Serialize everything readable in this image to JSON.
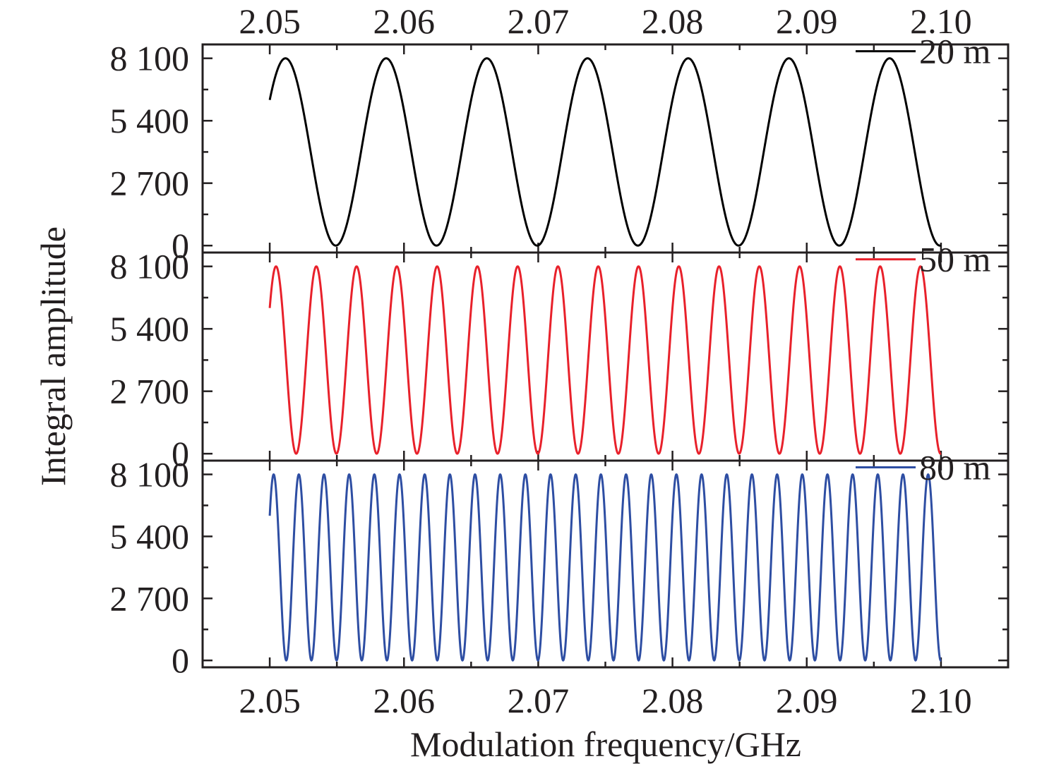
{
  "chart_data": {
    "type": "line",
    "layout": "three vertically stacked panels sharing the x axis",
    "xlabel": "Modulation frequency/GHz",
    "ylabel": "Integral amplitude",
    "xlim": [
      2.045,
      2.105
    ],
    "x_ticks": [
      2.05,
      2.06,
      2.07,
      2.08,
      2.09,
      2.1
    ],
    "x_tick_labels": [
      "2.05",
      "2.06",
      "2.07",
      "2.08",
      "2.09",
      "2.10"
    ],
    "top_axis_tick_labels": [
      "2.05",
      "2.06",
      "2.07",
      "2.08",
      "2.09",
      "2.10"
    ],
    "ylim": [
      -300,
      8700
    ],
    "y_ticks": [
      0,
      2700,
      5400,
      8100
    ],
    "y_tick_labels": [
      "0",
      "2 700",
      "5 400",
      "8 100"
    ],
    "legend_position": "top-right of each panel",
    "x_range_of_data": [
      2.05,
      2.1
    ],
    "series": [
      {
        "name": "20 m",
        "panel": 1,
        "color": "#000000",
        "amplitude_max": 8100,
        "amplitude_min": 0,
        "start_value": 6300,
        "period_GHz": 0.0075,
        "peak_positions": [
          2.0513,
          2.0588,
          2.0663,
          2.0738,
          2.0813,
          2.0888,
          2.0963
        ],
        "valley_positions": [
          2.055,
          2.0625,
          2.07,
          2.0775,
          2.085,
          2.0925,
          2.1
        ]
      },
      {
        "name": "50 m",
        "panel": 2,
        "color": "#e8212b",
        "amplitude_max": 8100,
        "amplitude_min": 0,
        "start_value": 6300,
        "period_GHz": 0.003,
        "peak_positions": [
          2.0505,
          2.0535,
          2.0565,
          2.0595,
          2.0625,
          2.0655,
          2.0685,
          2.0715,
          2.0745,
          2.0775,
          2.0805,
          2.0835,
          2.0865,
          2.0895,
          2.0925,
          2.0955,
          2.0985
        ],
        "valley_positions": [
          2.052,
          2.055,
          2.058,
          2.061,
          2.064,
          2.067,
          2.07,
          2.073,
          2.076,
          2.079,
          2.082,
          2.085,
          2.088,
          2.091,
          2.094,
          2.097,
          2.1
        ]
      },
      {
        "name": "80 m",
        "panel": 3,
        "color": "#2e4ea3",
        "amplitude_max": 8100,
        "amplitude_min": 0,
        "start_value": 6300,
        "period_GHz": 0.001875,
        "peak_positions": [
          2.0503,
          2.0522,
          2.0541,
          2.0559,
          2.0578,
          2.0597,
          2.0616,
          2.0634,
          2.0653,
          2.0672,
          2.0691,
          2.0709,
          2.0728,
          2.0747,
          2.0766,
          2.0784,
          2.0803,
          2.0822,
          2.0841,
          2.0859,
          2.0878,
          2.0897,
          2.0916,
          2.0934,
          2.0953,
          2.0972,
          2.0991
        ],
        "valley_positions": [
          2.0513,
          2.0531,
          2.055,
          2.0569,
          2.0588,
          2.0606,
          2.0625,
          2.0644,
          2.0663,
          2.0681,
          2.07,
          2.0719,
          2.0738,
          2.0756,
          2.0775,
          2.0794,
          2.0813,
          2.0831,
          2.085,
          2.0869,
          2.0888,
          2.0906,
          2.0925,
          2.0944,
          2.0963,
          2.0981,
          2.1
        ]
      }
    ]
  }
}
